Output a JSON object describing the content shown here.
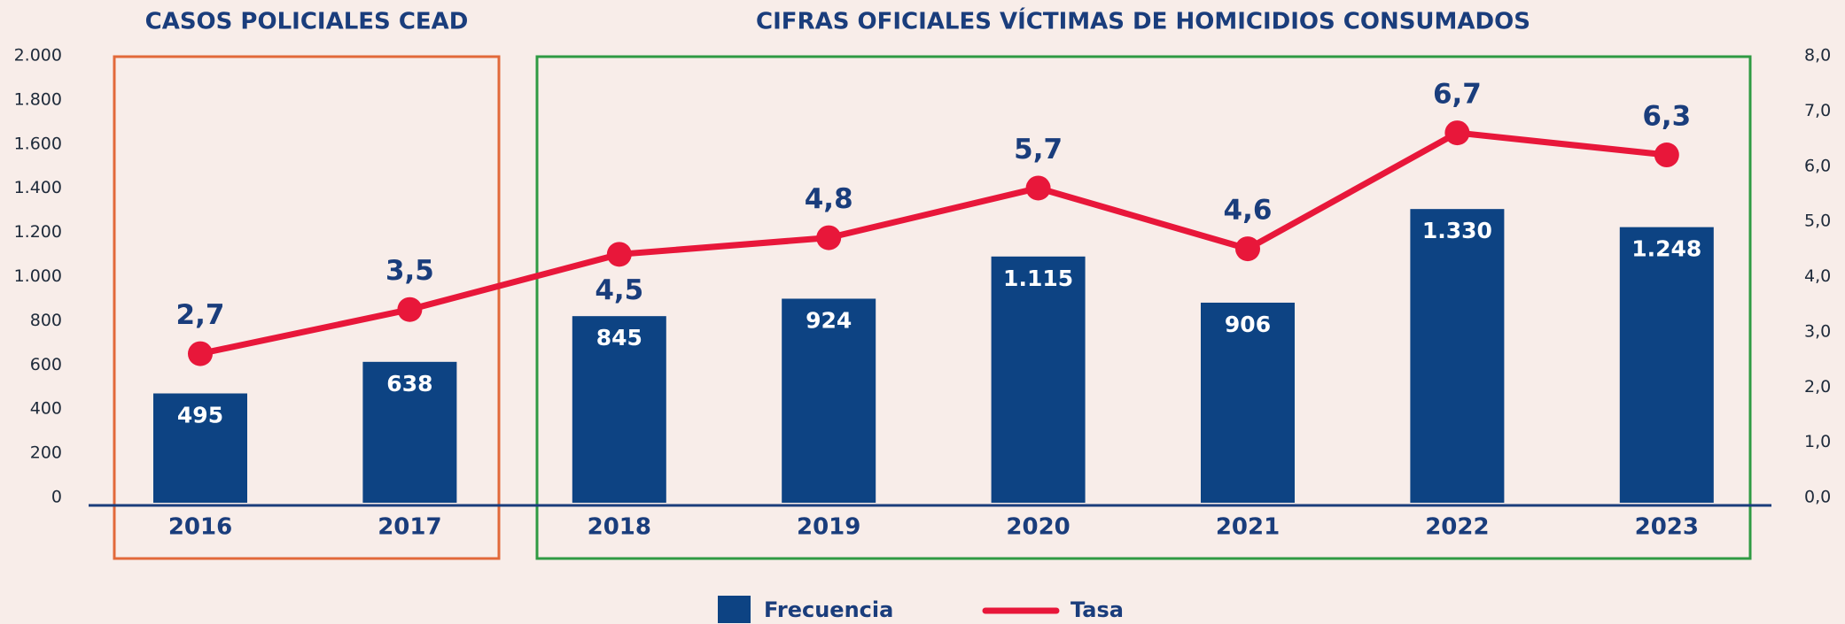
{
  "chart_data": {
    "type": "bar_line",
    "titles": [
      "CASOS POLICIALES CEAD",
      "CIFRAS OFICIALES VÍCTIMAS DE HOMICIDIOS CONSUMADOS"
    ],
    "categories": [
      "2016",
      "2017",
      "2018",
      "2019",
      "2020",
      "2021",
      "2022",
      "2023"
    ],
    "series": [
      {
        "name": "Frecuencia",
        "color": "#0d4383",
        "type": "bar",
        "values": [
          495,
          638,
          845,
          924,
          1115,
          906,
          1330,
          1248
        ],
        "value_labels": [
          "495",
          "638",
          "845",
          "924",
          "1.115",
          "906",
          "1.330",
          "1.248"
        ]
      },
      {
        "name": "Tasa",
        "color": "#e8173a",
        "type": "line",
        "axis": "y2",
        "values": [
          2.7,
          3.5,
          4.5,
          4.8,
          5.7,
          4.6,
          6.7,
          6.3
        ],
        "value_labels": [
          "2,7",
          "3,5",
          "4,5",
          "4,8",
          "5,7",
          "4,6",
          "6,7",
          "6,3"
        ]
      }
    ],
    "ylim": [
      0,
      2000
    ],
    "yticks": [
      0,
      200,
      400,
      600,
      800,
      {
        "value": 1000,
        "label": "1.000"
      },
      {
        "value": 1200,
        "label": "1.200"
      },
      {
        "value": 1400,
        "label": "1.400"
      },
      {
        "value": 1600,
        "label": "1.600"
      },
      {
        "value": 1800,
        "label": "1.800"
      },
      {
        "value": 2000,
        "label": "2.000"
      }
    ],
    "y2lim": [
      0,
      8
    ],
    "y2ticks": [
      {
        "value": 0,
        "label": "0,0"
      },
      {
        "value": 1,
        "label": "1,0"
      },
      {
        "value": 2,
        "label": "2,0"
      },
      {
        "value": 3,
        "label": "3,0"
      },
      {
        "value": 4,
        "label": "4,0"
      },
      {
        "value": 5,
        "label": "5,0"
      },
      {
        "value": 6,
        "label": "6,0"
      },
      {
        "value": 7,
        "label": "7,0"
      },
      {
        "value": 8,
        "label": "8,0"
      }
    ],
    "grid": false
  }
}
